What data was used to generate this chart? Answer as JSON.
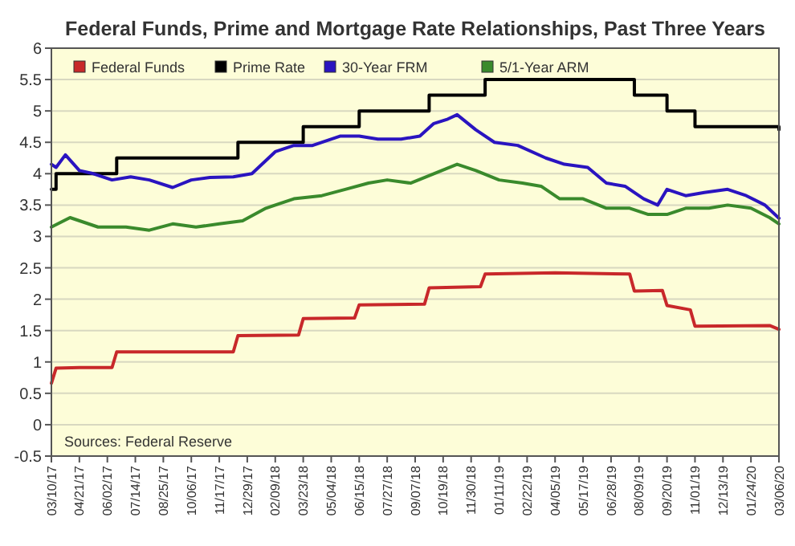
{
  "chart_data": {
    "type": "line",
    "title": "Federal Funds, Prime and Mortgage Rate Relationships, Past Three Years",
    "xlim": [
      "2017-03-10",
      "2020-03-06"
    ],
    "xticks": [
      {
        "value": "2017-03-10",
        "label": "03/10/17"
      },
      {
        "value": "2017-04-21",
        "label": "04/21/17"
      },
      {
        "value": "2017-06-02",
        "label": "06/02/17"
      },
      {
        "value": "2017-07-14",
        "label": "07/14/17"
      },
      {
        "value": "2017-08-25",
        "label": "08/25/17"
      },
      {
        "value": "2017-10-06",
        "label": "10/06/17"
      },
      {
        "value": "2017-11-17",
        "label": "11/17/17"
      },
      {
        "value": "2017-12-29",
        "label": "12/29/17"
      },
      {
        "value": "2018-02-09",
        "label": "02/09/18"
      },
      {
        "value": "2018-03-23",
        "label": "03/23/18"
      },
      {
        "value": "2018-05-04",
        "label": "05/04/18"
      },
      {
        "value": "2018-06-15",
        "label": "06/15/18"
      },
      {
        "value": "2018-07-27",
        "label": "07/27/18"
      },
      {
        "value": "2018-09-07",
        "label": "09/07/18"
      },
      {
        "value": "2018-10-19",
        "label": "10/19/18"
      },
      {
        "value": "2018-11-30",
        "label": "11/30/18"
      },
      {
        "value": "2019-01-11",
        "label": "01/11/19"
      },
      {
        "value": "2019-02-22",
        "label": "02/22/19"
      },
      {
        "value": "2019-04-05",
        "label": "04/05/19"
      },
      {
        "value": "2019-05-17",
        "label": "05/17/19"
      },
      {
        "value": "2019-06-28",
        "label": "06/28/19"
      },
      {
        "value": "2019-08-09",
        "label": "08/09/19"
      },
      {
        "value": "2019-09-20",
        "label": "09/20/19"
      },
      {
        "value": "2019-11-01",
        "label": "11/01/19"
      },
      {
        "value": "2019-12-13",
        "label": "12/13/19"
      },
      {
        "value": "2020-01-24",
        "label": "01/24/20"
      },
      {
        "value": "2020-03-06",
        "label": "03/06/20"
      }
    ],
    "ylim": [
      -0.5,
      6
    ],
    "yticks": [
      -0.5,
      0,
      0.5,
      1,
      1.5,
      2,
      2.5,
      3,
      3.5,
      4,
      4.5,
      5,
      5.5,
      6
    ],
    "grid": "y",
    "legend": "top left",
    "marker": "none",
    "line_style": "solid",
    "annotations": [
      "Sources: Federal Reserve"
    ],
    "series": [
      {
        "name": "Federal Funds",
        "color": "#c8282a",
        "x": [
          "2017-03-10",
          "2017-03-17",
          "2017-04-21",
          "2017-06-09",
          "2017-06-16",
          "2017-08-04",
          "2017-12-08",
          "2017-12-15",
          "2018-03-16",
          "2018-03-23",
          "2018-06-08",
          "2018-06-15",
          "2018-09-21",
          "2018-09-28",
          "2018-12-14",
          "2018-12-21",
          "2019-04-05",
          "2019-07-26",
          "2019-08-02",
          "2019-09-13",
          "2019-09-20",
          "2019-10-25",
          "2019-11-01",
          "2020-02-21",
          "2020-03-06"
        ],
        "values": [
          0.66,
          0.9,
          0.91,
          0.91,
          1.16,
          1.16,
          1.16,
          1.42,
          1.43,
          1.69,
          1.7,
          1.91,
          1.92,
          2.18,
          2.2,
          2.4,
          2.42,
          2.4,
          2.13,
          2.14,
          1.9,
          1.83,
          1.57,
          1.58,
          1.52
        ]
      },
      {
        "name": "Prime Rate",
        "color": "#000000",
        "type": "step",
        "x": [
          "2017-03-10",
          "2017-03-17",
          "2017-06-16",
          "2017-12-15",
          "2018-03-23",
          "2018-06-15",
          "2018-09-28",
          "2018-12-21",
          "2019-08-02",
          "2019-09-20",
          "2019-11-01",
          "2020-02-28",
          "2020-03-06"
        ],
        "values": [
          3.75,
          4,
          4.25,
          4.5,
          4.75,
          5,
          5.25,
          5.5,
          5.25,
          5,
          4.75,
          4.75,
          4.7
        ]
      },
      {
        "name": "30-Year FRM",
        "color": "#2a14c0",
        "x": [
          "2017-03-10",
          "2017-03-17",
          "2017-03-31",
          "2017-04-21",
          "2017-05-12",
          "2017-06-09",
          "2017-07-07",
          "2017-08-04",
          "2017-09-08",
          "2017-10-06",
          "2017-11-03",
          "2017-12-08",
          "2018-01-05",
          "2018-02-09",
          "2018-03-09",
          "2018-04-06",
          "2018-05-18",
          "2018-06-15",
          "2018-07-13",
          "2018-08-17",
          "2018-09-14",
          "2018-10-05",
          "2018-10-26",
          "2018-11-09",
          "2018-12-07",
          "2019-01-04",
          "2019-02-08",
          "2019-03-22",
          "2019-04-19",
          "2019-05-24",
          "2019-06-21",
          "2019-07-19",
          "2019-08-16",
          "2019-09-06",
          "2019-09-20",
          "2019-10-18",
          "2019-11-15",
          "2019-12-20",
          "2020-01-17",
          "2020-02-14",
          "2020-03-06"
        ],
        "values": [
          4.15,
          4.1,
          4.3,
          4.05,
          4.0,
          3.9,
          3.95,
          3.9,
          3.78,
          3.9,
          3.94,
          3.95,
          4.0,
          4.35,
          4.45,
          4.45,
          4.6,
          4.6,
          4.55,
          4.55,
          4.6,
          4.8,
          4.87,
          4.94,
          4.7,
          4.5,
          4.45,
          4.25,
          4.15,
          4.1,
          3.85,
          3.8,
          3.6,
          3.5,
          3.75,
          3.65,
          3.7,
          3.75,
          3.65,
          3.5,
          3.29
        ]
      },
      {
        "name": "5/1-Year ARM",
        "color": "#3a8a2c",
        "x": [
          "2017-03-10",
          "2017-04-07",
          "2017-05-19",
          "2017-06-30",
          "2017-08-04",
          "2017-09-08",
          "2017-10-13",
          "2017-11-17",
          "2017-12-22",
          "2018-01-26",
          "2018-03-09",
          "2018-04-20",
          "2018-05-25",
          "2018-06-29",
          "2018-07-27",
          "2018-08-31",
          "2018-10-05",
          "2018-11-09",
          "2018-12-07",
          "2019-01-11",
          "2019-02-15",
          "2019-03-15",
          "2019-04-12",
          "2019-05-17",
          "2019-06-21",
          "2019-07-26",
          "2019-08-23",
          "2019-09-20",
          "2019-10-18",
          "2019-11-22",
          "2019-12-20",
          "2020-01-24",
          "2020-02-21",
          "2020-03-06"
        ],
        "values": [
          3.15,
          3.3,
          3.15,
          3.15,
          3.1,
          3.2,
          3.15,
          3.2,
          3.25,
          3.45,
          3.6,
          3.65,
          3.75,
          3.85,
          3.9,
          3.85,
          4.0,
          4.15,
          4.05,
          3.9,
          3.85,
          3.8,
          3.6,
          3.6,
          3.45,
          3.45,
          3.35,
          3.35,
          3.45,
          3.45,
          3.5,
          3.45,
          3.3,
          3.2
        ]
      }
    ]
  }
}
